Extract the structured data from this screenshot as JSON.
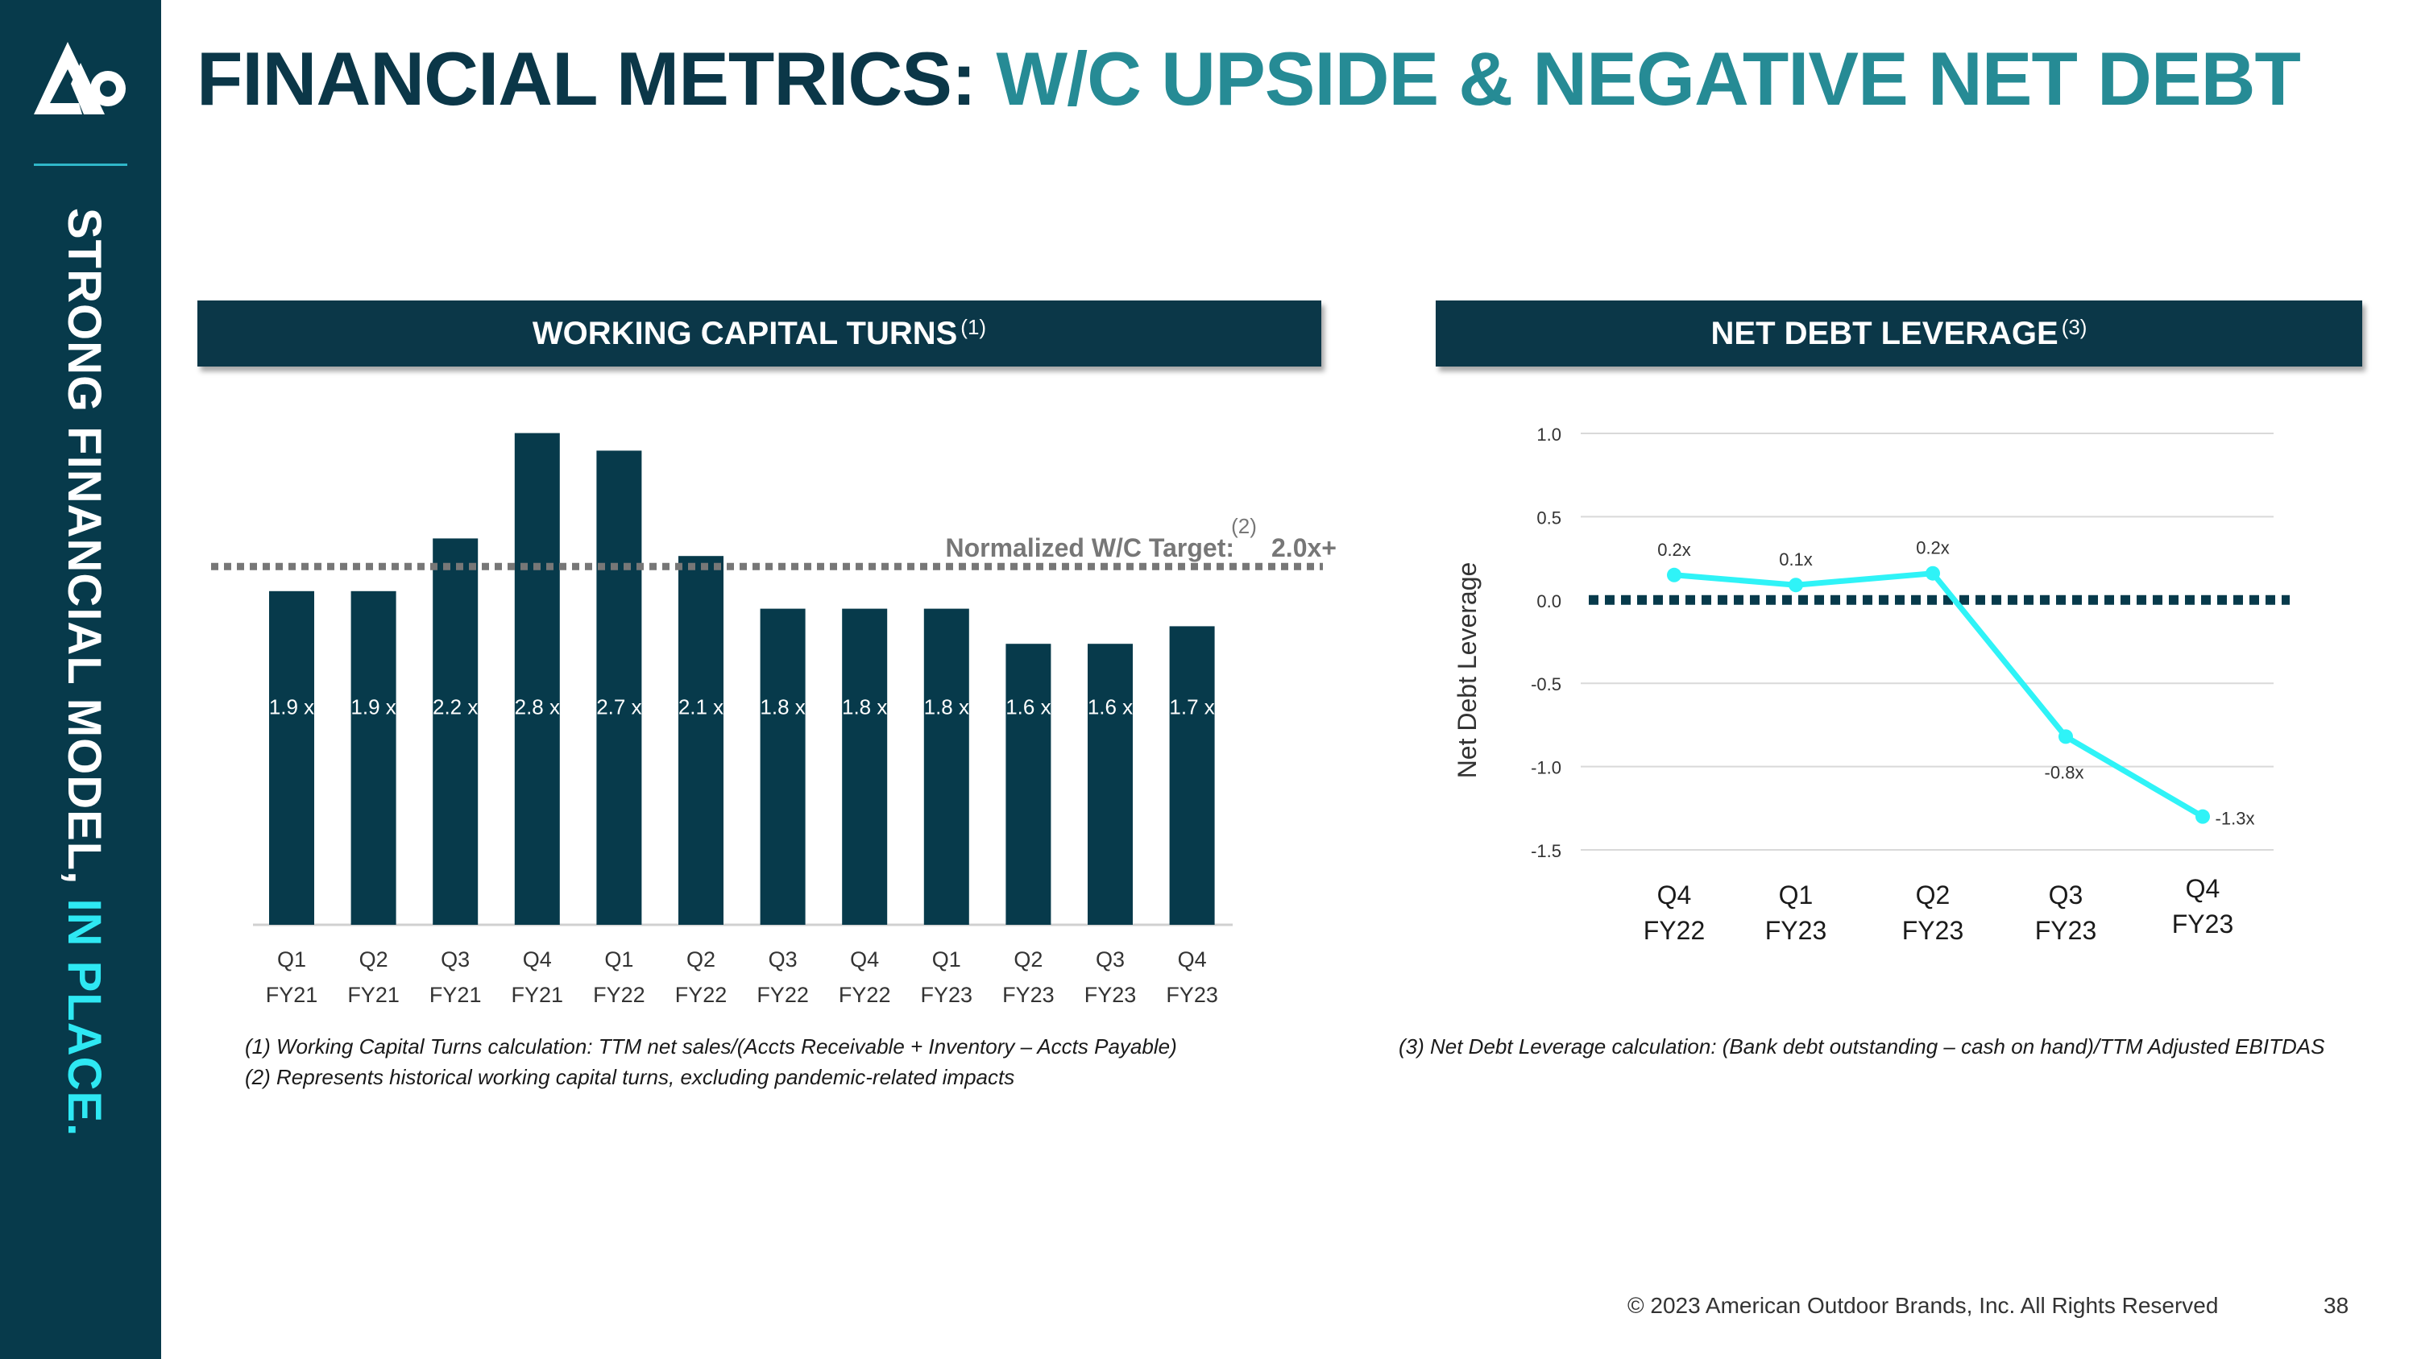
{
  "sidebar": {
    "text_main": "STRONG FINANCIAL MODEL,",
    "text_accent": "IN PLACE.",
    "logo_icon": "brand-logo-icon"
  },
  "header": {
    "title_main": "FINANCIAL METRICS:",
    "title_accent": "W/C UPSIDE & NEGATIVE NET DEBT"
  },
  "colors": {
    "navy": "#0b3748",
    "teal_accent": "#268b95",
    "cyan_line": "#2ff3f7",
    "bar_fill": "#073a4b"
  },
  "panels": {
    "wc_title": "WORKING CAPITAL TURNS",
    "wc_sup": "(1)",
    "nd_title": "NET DEBT LEVERAGE",
    "nd_sup": "(3)"
  },
  "chart_data": [
    {
      "type": "bar",
      "title": "WORKING CAPITAL TURNS",
      "categories": [
        [
          "Q1",
          "FY21"
        ],
        [
          "Q2",
          "FY21"
        ],
        [
          "Q3",
          "FY21"
        ],
        [
          "Q4",
          "FY21"
        ],
        [
          "Q1",
          "FY22"
        ],
        [
          "Q2",
          "FY22"
        ],
        [
          "Q3",
          "FY22"
        ],
        [
          "Q4",
          "FY22"
        ],
        [
          "Q1",
          "FY23"
        ],
        [
          "Q2",
          "FY23"
        ],
        [
          "Q3",
          "FY23"
        ],
        [
          "Q4",
          "FY23"
        ]
      ],
      "values": [
        1.9,
        1.9,
        2.2,
        2.8,
        2.7,
        2.1,
        1.8,
        1.8,
        1.8,
        1.6,
        1.6,
        1.7
      ],
      "bar_labels": [
        "1.9 x",
        "1.9 x",
        "2.2 x",
        "2.8 x",
        "2.7 x",
        "2.1 x",
        "1.8 x",
        "1.8 x",
        "1.8 x",
        "1.6 x",
        "1.6 x",
        "1.7 x"
      ],
      "target": {
        "label": "Normalized W/C Target:",
        "sup": "(2)",
        "value": "2.0x+",
        "line_style": "dotted"
      },
      "grid": false
    },
    {
      "type": "line",
      "title": "NET DEBT LEVERAGE",
      "ylabel": "Net Debt Leverage",
      "categories": [
        [
          "Q4",
          "FY22"
        ],
        [
          "Q1",
          "FY23"
        ],
        [
          "Q2",
          "FY23"
        ],
        [
          "Q3",
          "FY23"
        ],
        [
          "Q4",
          "FY23"
        ]
      ],
      "values": [
        0.15,
        0.09,
        0.16,
        -0.82,
        -1.3
      ],
      "point_labels": [
        "0.2x",
        "0.1x",
        "0.2x",
        "-0.8x",
        "-1.3x"
      ],
      "yticks": [
        "1.0",
        "0.5",
        "0.0",
        "-0.5",
        "-1.0",
        "-1.5"
      ],
      "ylim": [
        -1.5,
        1.0
      ],
      "zero_line": "dotted",
      "grid": true
    }
  ],
  "footnotes": {
    "fn1": "(1) Working Capital Turns calculation:  TTM net sales/(Accts Receivable + Inventory – Accts Payable)",
    "fn2": "(2) Represents historical working capital turns, excluding pandemic-related impacts",
    "fn3": "(3) Net Debt Leverage calculation:  (Bank debt outstanding – cash on hand)/TTM Adjusted EBITDAS"
  },
  "footer": {
    "copyright": "© 2023 American Outdoor Brands, Inc. All Rights Reserved",
    "page_number": "38"
  }
}
